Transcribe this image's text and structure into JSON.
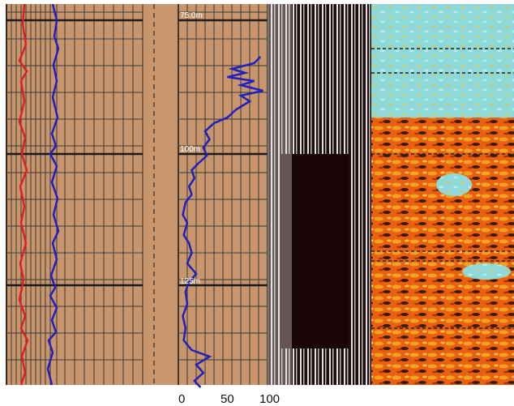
{
  "chart_data": {
    "type": "line",
    "colors": {
      "track_background": "#c8956c",
      "grid_major": "#2a2a2a",
      "grid_minor": "#3a3a3a",
      "curve_primary": "#2020c0",
      "curve_secondary": "#e02020",
      "image_light": "#8ed8d8",
      "image_dark": "#e86010"
    },
    "depth_labels": [
      "75.0m",
      "100m",
      "125m"
    ],
    "tracks": [
      {
        "name": "",
        "series": [
          {
            "name": "",
            "color": "#2020c0",
            "points": [
              [
                65,
                5
              ],
              [
                70,
                25
              ],
              [
                67,
                45
              ],
              [
                72,
                60
              ],
              [
                66,
                80
              ],
              [
                70,
                100
              ],
              [
                65,
                120
              ],
              [
                71,
                145
              ],
              [
                64,
                165
              ],
              [
                69,
                180
              ],
              [
                62,
                190
              ],
              [
                70,
                205
              ],
              [
                64,
                225
              ],
              [
                71,
                245
              ],
              [
                66,
                265
              ],
              [
                72,
                285
              ],
              [
                65,
                300
              ],
              [
                70,
                320
              ],
              [
                63,
                340
              ],
              [
                68,
                355
              ],
              [
                62,
                365
              ],
              [
                70,
                380
              ],
              [
                64,
                395
              ],
              [
                69,
                410
              ],
              [
                60,
                420
              ],
              [
                65,
                435
              ],
              [
                59,
                455
              ],
              [
                64,
                475
              ]
            ]
          },
          {
            "name": "",
            "color": "#e02020",
            "points": [
              [
                30,
                5
              ],
              [
                28,
                30
              ],
              [
                32,
                55
              ],
              [
                24,
                75
              ],
              [
                33,
                88
              ],
              [
                26,
                100
              ],
              [
                30,
                125
              ],
              [
                24,
                150
              ],
              [
                31,
                170
              ],
              [
                27,
                190
              ],
              [
                33,
                210
              ],
              [
                25,
                230
              ],
              [
                30,
                255
              ],
              [
                26,
                275
              ],
              [
                32,
                300
              ],
              [
                25,
                325
              ],
              [
                29,
                345
              ],
              [
                24,
                370
              ],
              [
                31,
                390
              ],
              [
                26,
                405
              ],
              [
                34,
                420
              ],
              [
                27,
                440
              ],
              [
                31,
                460
              ],
              [
                26,
                475
              ]
            ]
          }
        ]
      },
      {
        "name": "",
        "scale_ticks": [
          "0",
          "50",
          "100"
        ],
        "scale_range": [
          0,
          100
        ],
        "series": [
          {
            "name": "",
            "color": "#2020c0",
            "points": [
              [
                92,
                70
              ],
              [
                85,
                78
              ],
              [
                60,
                85
              ],
              [
                75,
                90
              ],
              [
                55,
                95
              ],
              [
                85,
                100
              ],
              [
                70,
                105
              ],
              [
                95,
                112
              ],
              [
                70,
                118
              ],
              [
                80,
                125
              ],
              [
                65,
                135
              ],
              [
                55,
                145
              ],
              [
                40,
                152
              ],
              [
                30,
                162
              ],
              [
                35,
                172
              ],
              [
                28,
                182
              ],
              [
                32,
                192
              ],
              [
                22,
                202
              ],
              [
                15,
                210
              ],
              [
                18,
                220
              ],
              [
                12,
                230
              ],
              [
                15,
                240
              ],
              [
                8,
                250
              ],
              [
                5,
                265
              ],
              [
                10,
                275
              ],
              [
                6,
                290
              ],
              [
                12,
                300
              ],
              [
                15,
                312
              ],
              [
                10,
                325
              ],
              [
                20,
                338
              ],
              [
                12,
                348
              ],
              [
                8,
                360
              ],
              [
                10,
                375
              ],
              [
                5,
                390
              ],
              [
                8,
                405
              ],
              [
                6,
                420
              ],
              [
                15,
                432
              ],
              [
                35,
                440
              ],
              [
                20,
                450
              ],
              [
                28,
                460
              ],
              [
                18,
                470
              ],
              [
                25,
                478
              ]
            ]
          }
        ]
      },
      {
        "name": "",
        "kind": "resistivity_image"
      },
      {
        "name": "",
        "kind": "color_image"
      }
    ]
  }
}
